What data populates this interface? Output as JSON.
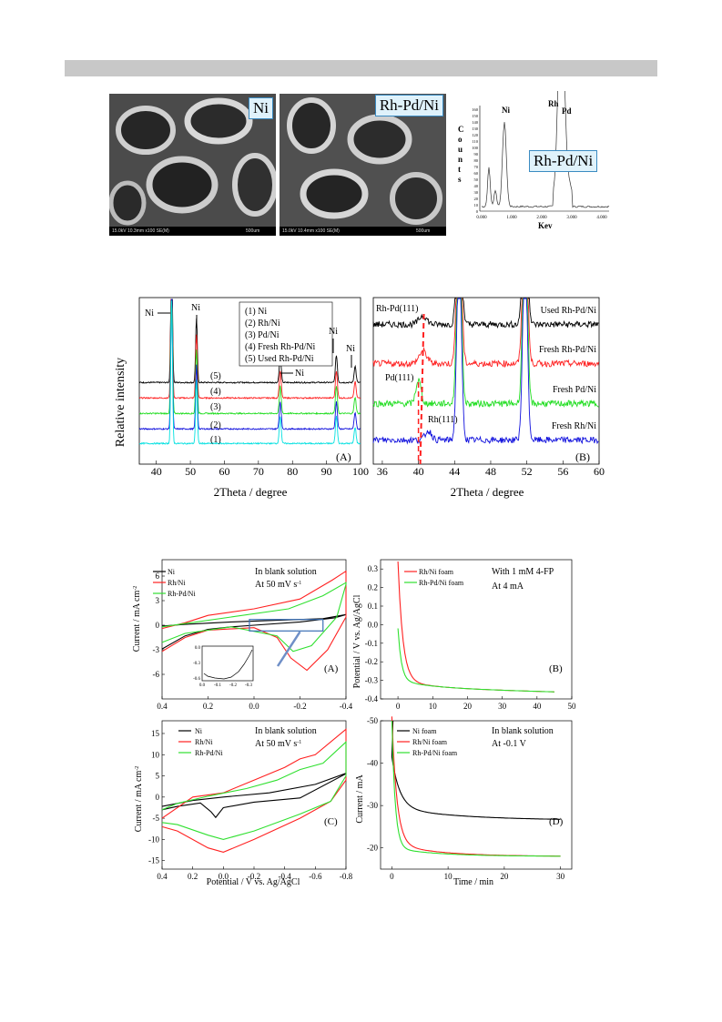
{
  "sem": {
    "left_label": "Ni",
    "right_label": "Rh-Pd/Ni",
    "left_caption": "15.0kV 10.3mm x100 SE(M)",
    "right_caption": "15.0kV 10.4mm x100 SE(M)",
    "scale": "500um"
  },
  "eds": {
    "label": "Rh-Pd/Ni",
    "xlabel": "Kev",
    "ylabel": "Counts",
    "peaks": {
      "ni": "Ni",
      "rh": "Rh",
      "pd": "Pd"
    },
    "x_ticks": [
      "0.000",
      "1.000",
      "2.000",
      "3.000",
      "4.000"
    ],
    "y_ticks": [
      "0",
      "10",
      "20",
      "30",
      "40",
      "50",
      "60",
      "70",
      "80",
      "90",
      "100",
      "110",
      "120",
      "130",
      "140",
      "150",
      "160"
    ]
  },
  "xrd": {
    "ylabel": "Relative intensity",
    "xlabel": "2Theta / degree",
    "panel_a": "(A)",
    "panel_b": "(B)",
    "legend": [
      "(1) Ni",
      "(2) Rh/Ni",
      "(3) Pd/Ni",
      "(4) Fresh Rh-Pd/Ni",
      "(5) Used Rh-Pd/Ni"
    ],
    "curve_numbers": [
      "(5)",
      "(4)",
      "(3)",
      "(2)",
      "(1)"
    ],
    "a_x_ticks": [
      "40",
      "50",
      "60",
      "70",
      "80",
      "90",
      "100"
    ],
    "b_x_ticks": [
      "36",
      "40",
      "44",
      "48",
      "52",
      "56",
      "60"
    ],
    "ni": "Ni",
    "b_labels": [
      "Used Rh-Pd/Ni",
      "Fresh Rh-Pd/Ni",
      "Fresh Pd/Ni",
      "Fresh Rh/Ni"
    ],
    "rhpd111": "Rh-Pd(111)",
    "pd111": "Pd(111)",
    "rh111": "Rh(111)",
    "colors": [
      "#000000",
      "#ff2020",
      "#20dd20",
      "#1010dd",
      "#00e0e0"
    ]
  },
  "electro": {
    "a": {
      "legend": [
        "Ni",
        "Rh/Ni",
        "Rh-Pd/Ni"
      ],
      "note1": "In blank solution",
      "note2": "At 50 mV s",
      "ylabel": "Current / mA cm",
      "panel": "(A)",
      "y_ticks": [
        "6",
        "3",
        "0",
        "-3",
        "-6"
      ],
      "x_ticks": [
        "0.4",
        "0.2",
        "0.0",
        "-0.2",
        "-0.4"
      ],
      "inset_y": [
        "0.0",
        "-0.3",
        "-0.6"
      ],
      "inset_x": [
        "0.0",
        "-0.1",
        "-0.2",
        "-0.3"
      ]
    },
    "b": {
      "legend": [
        "Rh/Ni foam",
        "Rh-Pd/Ni foam"
      ],
      "note1": "With 1 mM 4-FP",
      "note2": "At 4 mA",
      "ylabel": "Potential / V vs. Ag/AgCl",
      "panel": "(B)",
      "y_ticks": [
        "0.3",
        "0.2",
        "0.1",
        "0.0",
        "-0.1",
        "-0.2",
        "-0.3",
        "-0.4"
      ],
      "x_ticks": [
        "0",
        "10",
        "20",
        "30",
        "40",
        "50"
      ]
    },
    "c": {
      "legend": [
        "Ni",
        "Rh/Ni",
        "Rh-Pd/Ni"
      ],
      "note1": "In blank solution",
      "note2": "At 50 mV s",
      "ylabel": "Current / mA cm",
      "panel": "(C)",
      "y_ticks": [
        "15",
        "10",
        "5",
        "0",
        "-5",
        "-10",
        "-15"
      ],
      "x_ticks": [
        "0.4",
        "0.2",
        "0.0",
        "-0.2",
        "-0.4",
        "-0.6",
        "-0.8"
      ],
      "xlabel": "Potential / V vs. Ag/AgCl"
    },
    "d": {
      "legend": [
        "Ni foam",
        "Rh/Ni foam",
        "Rh-Pd/Ni foam"
      ],
      "note1": "In blank solution",
      "note2": "At -0.1 V",
      "ylabel": "Current / mA",
      "panel": "(D)",
      "y_ticks": [
        "-50",
        "-40",
        "-30",
        "-20"
      ],
      "x_ticks": [
        "0",
        "10",
        "20",
        "30"
      ],
      "xlabel": "Time / min"
    },
    "colors": {
      "black": "#000000",
      "red": "#ff2020",
      "green": "#30e030"
    }
  }
}
